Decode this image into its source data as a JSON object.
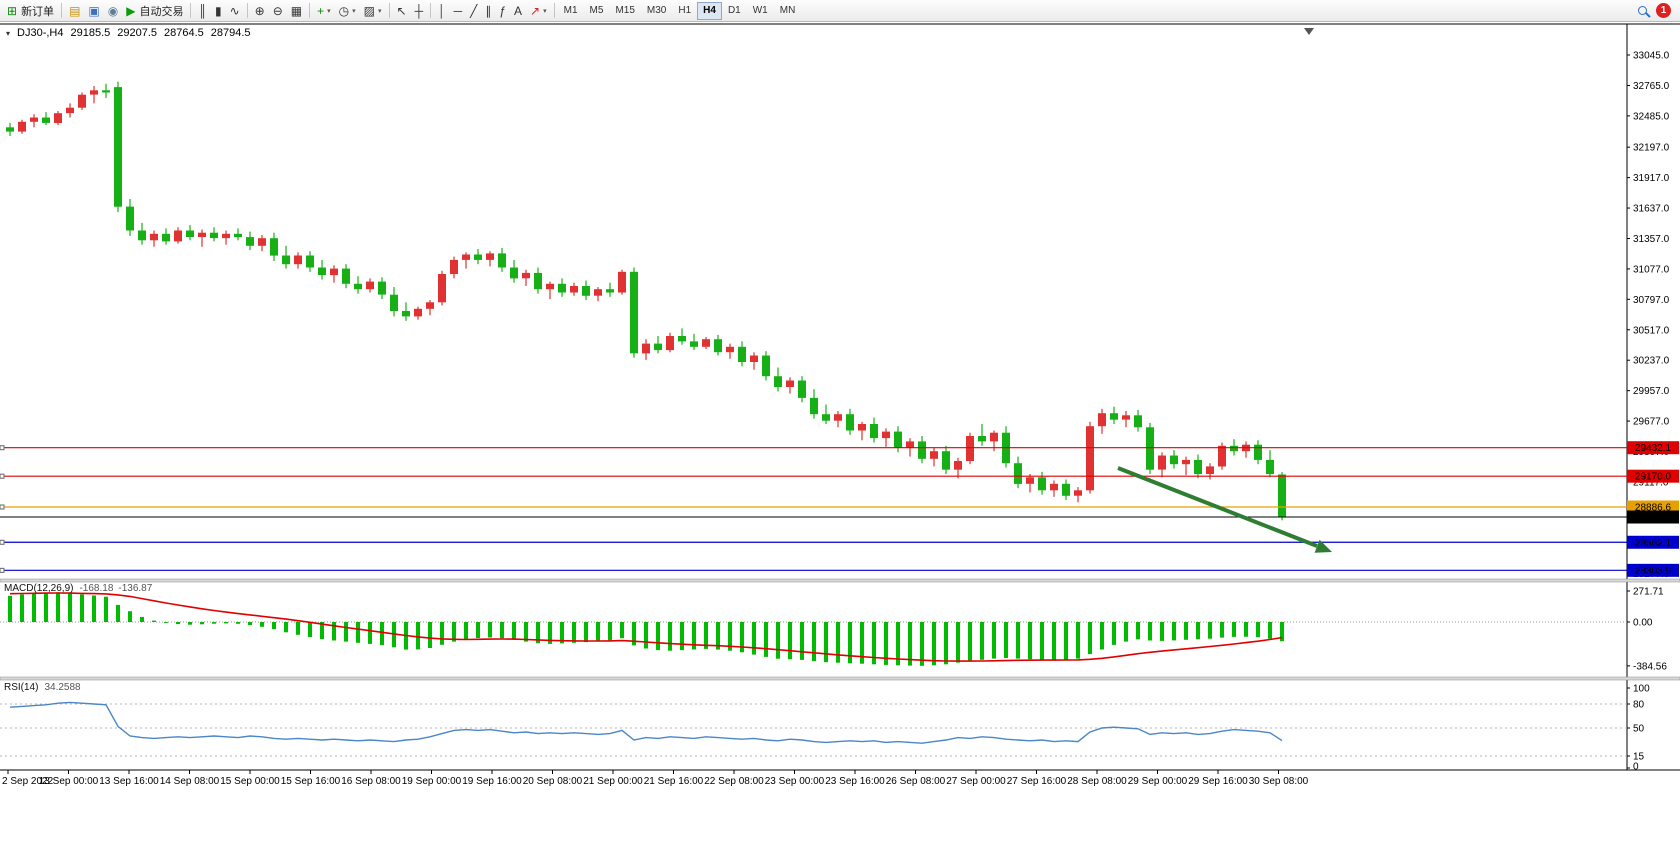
{
  "toolbar": {
    "new_order_label": "新订单",
    "auto_trading_label": "自动交易",
    "system_icons": [
      "charts-icon",
      "profiles-icon",
      "market-watch-icon"
    ],
    "chart_type_icons": [
      "bar-chart-icon",
      "candlestick-chart-icon",
      "line-chart-icon"
    ],
    "zoom_icons": [
      "zoom-in-icon",
      "zoom-out-icon",
      "tile-windows-icon"
    ],
    "insert_icons": [
      "indicators-icon",
      "periods-icon",
      "templates-icon"
    ],
    "cursor_icons": [
      "cursor-icon",
      "crosshair-icon"
    ],
    "drawing_icons": [
      "vertical-line-icon",
      "horizontal-line-icon",
      "trendline-icon",
      "equidistant-channel-icon",
      "fibonacci-icon",
      "text-icon",
      "arrows-icon"
    ],
    "timeframes": [
      "M1",
      "M5",
      "M15",
      "M30",
      "H1",
      "H4",
      "D1",
      "W1",
      "MN"
    ],
    "active_timeframe": "H4",
    "notification_count": "1"
  },
  "header": {
    "symbol": "DJ30-,H4",
    "open": "29185.5",
    "high": "29207.5",
    "low": "28764.5",
    "close": "28794.5"
  },
  "price_axis": {
    "labels": [
      "33045.0",
      "32765.0",
      "32485.0",
      "32197.0",
      "31917.0",
      "31637.0",
      "31357.0",
      "31077.0",
      "30797.0",
      "30517.0",
      "30237.0",
      "29957.0",
      "29677.0",
      "29397.0",
      "29117.0",
      "28837.0",
      "28557.0",
      "28277.0"
    ]
  },
  "lines": [
    {
      "name": "resistance-line-1",
      "label": "29432.1",
      "value": 29432.1,
      "color": "#e00000"
    },
    {
      "name": "resistance-line-2",
      "label": "29170.0",
      "value": 29170.0,
      "color": "#e00000"
    },
    {
      "name": "support-line-orange",
      "label": "28886.6",
      "value": 28886.6,
      "color": "#e8a000"
    },
    {
      "name": "support-line-blue-1",
      "label": "28562.1",
      "value": 28562.1,
      "color": "#0000cc"
    },
    {
      "name": "support-line-blue-2",
      "label": "28303.9",
      "value": 28303.9,
      "color": "#0000cc"
    }
  ],
  "bid_line": {
    "name": "bid-price-line",
    "label": "28794.5",
    "value": 28794.5,
    "color": "#000000"
  },
  "macd": {
    "title": "MACD(12,26,9)",
    "main_value": "-168.18",
    "signal_value": "-136.87",
    "scale": [
      {
        "label": "271.71",
        "value": 271.71
      },
      {
        "label": "0.00",
        "value": 0
      },
      {
        "label": "-384.56",
        "value": -384.56
      }
    ]
  },
  "rsi": {
    "title": "RSI(14)",
    "value": "34.2588",
    "scale": [
      {
        "label": "100",
        "value": 100
      },
      {
        "label": "80",
        "value": 80
      },
      {
        "label": "50",
        "value": 50
      },
      {
        "label": "15",
        "value": 15
      },
      {
        "label": "0",
        "value": 0
      }
    ],
    "levels": [
      80,
      50,
      15
    ]
  },
  "time_axis": {
    "labels": [
      "2 Sep 2022",
      "13 Sep 00:00",
      "13 Sep 16:00",
      "14 Sep 08:00",
      "15 Sep 00:00",
      "15 Sep 16:00",
      "16 Sep 08:00",
      "19 Sep 00:00",
      "19 Sep 16:00",
      "20 Sep 08:00",
      "21 Sep 00:00",
      "21 Sep 16:00",
      "22 Sep 08:00",
      "23 Sep 00:00",
      "23 Sep 16:00",
      "26 Sep 08:00",
      "27 Sep 00:00",
      "27 Sep 16:00",
      "28 Sep 08:00",
      "29 Sep 00:00",
      "29 Sep 16:00",
      "30 Sep 08:00"
    ]
  },
  "colors": {
    "bull": "#e03232",
    "bear": "#16b016",
    "macd_hist": "#00bb00",
    "macd_signal": "#e00000",
    "rsi_line": "#4a86c8",
    "annotation_arrow": "#2e7d32"
  },
  "annotation": {
    "name": "down-trend-arrow",
    "type": "arrow",
    "color": "#2e7d32"
  },
  "chart_data": {
    "type": "candlestick",
    "symbol": "DJ30-",
    "timeframe": "H4",
    "price_range_visible": [
      28277,
      33045
    ],
    "candles": [
      [
        32380,
        32420,
        32300,
        32340
      ],
      [
        32340,
        32450,
        32320,
        32430
      ],
      [
        32430,
        32500,
        32380,
        32470
      ],
      [
        32470,
        32520,
        32400,
        32420
      ],
      [
        32420,
        32530,
        32400,
        32510
      ],
      [
        32510,
        32600,
        32470,
        32560
      ],
      [
        32560,
        32700,
        32540,
        32680
      ],
      [
        32680,
        32760,
        32600,
        32720
      ],
      [
        32720,
        32780,
        32650,
        32700
      ],
      [
        32750,
        32800,
        31600,
        31650
      ],
      [
        31650,
        31720,
        31380,
        31430
      ],
      [
        31430,
        31500,
        31300,
        31340
      ],
      [
        31340,
        31430,
        31280,
        31400
      ],
      [
        31400,
        31450,
        31300,
        31330
      ],
      [
        31330,
        31460,
        31310,
        31430
      ],
      [
        31430,
        31480,
        31340,
        31370
      ],
      [
        31370,
        31440,
        31280,
        31410
      ],
      [
        31410,
        31460,
        31330,
        31360
      ],
      [
        31360,
        31430,
        31300,
        31400
      ],
      [
        31400,
        31450,
        31340,
        31370
      ],
      [
        31370,
        31420,
        31250,
        31290
      ],
      [
        31290,
        31390,
        31240,
        31360
      ],
      [
        31360,
        31410,
        31150,
        31200
      ],
      [
        31200,
        31290,
        31080,
        31120
      ],
      [
        31120,
        31230,
        31080,
        31200
      ],
      [
        31200,
        31240,
        31050,
        31090
      ],
      [
        31090,
        31160,
        30980,
        31020
      ],
      [
        31020,
        31110,
        30950,
        31080
      ],
      [
        31080,
        31120,
        30900,
        30940
      ],
      [
        30940,
        31010,
        30850,
        30890
      ],
      [
        30890,
        30990,
        30860,
        30960
      ],
      [
        30960,
        31000,
        30800,
        30840
      ],
      [
        30840,
        30910,
        30640,
        30690
      ],
      [
        30690,
        30770,
        30600,
        30640
      ],
      [
        30640,
        30730,
        30610,
        30710
      ],
      [
        30710,
        30790,
        30650,
        30770
      ],
      [
        30770,
        31060,
        30740,
        31030
      ],
      [
        31030,
        31190,
        30990,
        31160
      ],
      [
        31160,
        31230,
        31080,
        31210
      ],
      [
        31210,
        31260,
        31120,
        31160
      ],
      [
        31160,
        31240,
        31100,
        31220
      ],
      [
        31220,
        31270,
        31050,
        31090
      ],
      [
        31090,
        31160,
        30950,
        30990
      ],
      [
        30990,
        31070,
        30920,
        31040
      ],
      [
        31040,
        31090,
        30850,
        30890
      ],
      [
        30890,
        30960,
        30800,
        30940
      ],
      [
        30940,
        30990,
        30820,
        30860
      ],
      [
        30860,
        30950,
        30830,
        30920
      ],
      [
        30920,
        30970,
        30790,
        30830
      ],
      [
        30830,
        30910,
        30780,
        30890
      ],
      [
        30890,
        30950,
        30820,
        30860
      ],
      [
        30860,
        31070,
        30840,
        31050
      ],
      [
        31050,
        31090,
        30260,
        30300
      ],
      [
        30300,
        30430,
        30240,
        30390
      ],
      [
        30390,
        30460,
        30300,
        30330
      ],
      [
        30330,
        30490,
        30310,
        30460
      ],
      [
        30460,
        30530,
        30380,
        30410
      ],
      [
        30410,
        30480,
        30330,
        30360
      ],
      [
        30360,
        30450,
        30340,
        30430
      ],
      [
        30430,
        30470,
        30280,
        30310
      ],
      [
        30310,
        30390,
        30250,
        30360
      ],
      [
        30360,
        30410,
        30180,
        30220
      ],
      [
        30220,
        30310,
        30150,
        30280
      ],
      [
        30280,
        30320,
        30050,
        30090
      ],
      [
        30090,
        30170,
        29950,
        29990
      ],
      [
        29990,
        30080,
        29930,
        30050
      ],
      [
        30050,
        30090,
        29850,
        29890
      ],
      [
        29890,
        29970,
        29700,
        29740
      ],
      [
        29740,
        29830,
        29650,
        29680
      ],
      [
        29680,
        29770,
        29620,
        29740
      ],
      [
        29740,
        29790,
        29550,
        29590
      ],
      [
        29590,
        29670,
        29500,
        29650
      ],
      [
        29650,
        29710,
        29480,
        29520
      ],
      [
        29520,
        29610,
        29440,
        29580
      ],
      [
        29580,
        29630,
        29390,
        29430
      ],
      [
        29430,
        29520,
        29350,
        29490
      ],
      [
        29490,
        29540,
        29290,
        29330
      ],
      [
        29330,
        29430,
        29260,
        29400
      ],
      [
        29400,
        29450,
        29190,
        29230
      ],
      [
        29230,
        29340,
        29150,
        29310
      ],
      [
        29310,
        29570,
        29280,
        29540
      ],
      [
        29540,
        29650,
        29450,
        29490
      ],
      [
        29490,
        29590,
        29400,
        29570
      ],
      [
        29570,
        29630,
        29250,
        29290
      ],
      [
        29290,
        29350,
        29060,
        29100
      ],
      [
        29100,
        29190,
        29020,
        29160
      ],
      [
        29160,
        29210,
        29000,
        29040
      ],
      [
        29040,
        29130,
        28980,
        29100
      ],
      [
        29100,
        29140,
        28950,
        28990
      ],
      [
        28990,
        29070,
        28930,
        29040
      ],
      [
        29040,
        29670,
        29010,
        29630
      ],
      [
        29630,
        29790,
        29560,
        29750
      ],
      [
        29750,
        29810,
        29650,
        29690
      ],
      [
        29690,
        29770,
        29620,
        29730
      ],
      [
        29730,
        29780,
        29580,
        29620
      ],
      [
        29620,
        29660,
        29190,
        29230
      ],
      [
        29230,
        29390,
        29160,
        29360
      ],
      [
        29360,
        29410,
        29240,
        29280
      ],
      [
        29280,
        29350,
        29180,
        29320
      ],
      [
        29320,
        29370,
        29150,
        29190
      ],
      [
        29190,
        29290,
        29140,
        29260
      ],
      [
        29260,
        29480,
        29230,
        29450
      ],
      [
        29450,
        29510,
        29360,
        29400
      ],
      [
        29400,
        29490,
        29340,
        29460
      ],
      [
        29460,
        29500,
        29280,
        29320
      ],
      [
        29320,
        29410,
        29160,
        29190
      ],
      [
        29185.5,
        29207.5,
        28764.5,
        28794.5
      ]
    ],
    "macd_main": [
      230,
      242,
      252,
      258,
      260,
      252,
      242,
      232,
      222,
      150,
      95,
      45,
      12,
      -8,
      -18,
      -24,
      -20,
      -15,
      -12,
      -16,
      -26,
      -42,
      -62,
      -90,
      -112,
      -132,
      -150,
      -162,
      -172,
      -182,
      -192,
      -202,
      -222,
      -242,
      -240,
      -228,
      -200,
      -172,
      -150,
      -140,
      -136,
      -142,
      -156,
      -172,
      -186,
      -192,
      -188,
      -182,
      -176,
      -170,
      -160,
      -142,
      -205,
      -232,
      -246,
      -252,
      -247,
      -241,
      -236,
      -242,
      -252,
      -266,
      -286,
      -306,
      -322,
      -327,
      -332,
      -342,
      -352,
      -357,
      -362,
      -366,
      -371,
      -376,
      -380,
      -382,
      -384,
      -380,
      -371,
      -356,
      -341,
      -331,
      -321,
      -316,
      -321,
      -326,
      -331,
      -336,
      -331,
      -321,
      -281,
      -241,
      -201,
      -172,
      -152,
      -162,
      -166,
      -161,
      -156,
      -151,
      -146,
      -137,
      -131,
      -129,
      -133,
      -146,
      -168.18
    ],
    "macd_signal": [
      248,
      250,
      252,
      253,
      254,
      253,
      251,
      249,
      246,
      238,
      224,
      205,
      186,
      167,
      149,
      132,
      116,
      101,
      87,
      74,
      62,
      50,
      38,
      25,
      11,
      -3,
      -18,
      -33,
      -48,
      -62,
      -76,
      -90,
      -104,
      -118,
      -131,
      -141,
      -148,
      -152,
      -153,
      -152,
      -150,
      -149,
      -150,
      -153,
      -157,
      -161,
      -164,
      -166,
      -167,
      -167,
      -166,
      -163,
      -168,
      -175,
      -182,
      -189,
      -195,
      -200,
      -204,
      -208,
      -213,
      -219,
      -226,
      -234,
      -243,
      -252,
      -261,
      -270,
      -279,
      -288,
      -296,
      -304,
      -311,
      -318,
      -324,
      -330,
      -335,
      -339,
      -342,
      -343,
      -343,
      -342,
      -340,
      -338,
      -336,
      -335,
      -334,
      -334,
      -333,
      -332,
      -327,
      -318,
      -306,
      -292,
      -278,
      -266,
      -255,
      -245,
      -235,
      -225,
      -215,
      -204,
      -193,
      -181,
      -168,
      -153,
      -136.87
    ],
    "rsi": [
      76,
      77,
      78,
      79,
      81,
      82,
      81,
      80,
      79,
      52,
      40,
      38,
      37,
      38,
      39,
      38,
      39,
      40,
      39,
      38,
      40,
      39,
      37,
      36,
      37,
      36,
      35,
      36,
      35,
      34,
      35,
      34,
      33,
      35,
      36,
      39,
      43,
      47,
      48,
      47,
      48,
      46,
      44,
      45,
      43,
      44,
      43,
      44,
      43,
      42,
      43,
      47,
      35,
      38,
      37,
      39,
      38,
      37,
      39,
      38,
      37,
      36,
      37,
      35,
      34,
      36,
      35,
      33,
      32,
      33,
      34,
      33,
      34,
      32,
      33,
      32,
      31,
      33,
      35,
      38,
      37,
      39,
      38,
      36,
      35,
      34,
      35,
      33,
      34,
      33,
      45,
      50,
      51,
      50,
      49,
      42,
      44,
      43,
      44,
      42,
      43,
      46,
      48,
      47,
      46,
      44,
      34.26
    ]
  }
}
